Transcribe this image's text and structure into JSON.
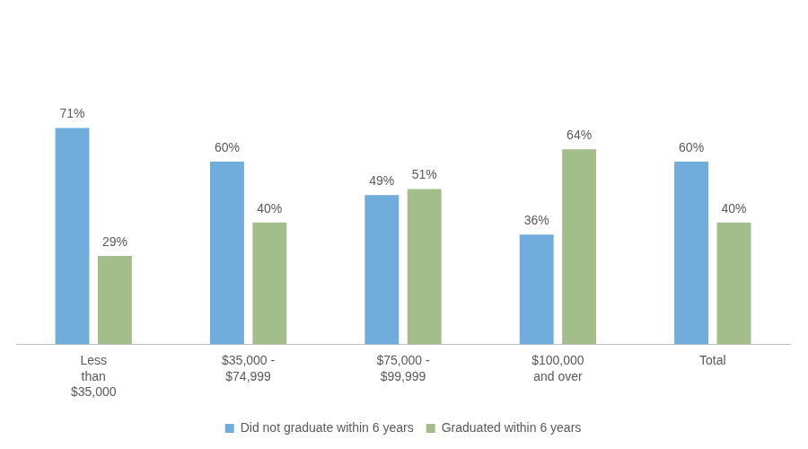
{
  "chart_data": {
    "type": "bar",
    "categories": [
      [
        "Less",
        "than",
        "$35,000"
      ],
      [
        "$35,000 -",
        "$74,999"
      ],
      [
        "$75,000 -",
        "$99,999"
      ],
      [
        "$100,000",
        "and over"
      ],
      [
        "Total"
      ]
    ],
    "series": [
      {
        "name": "Did not graduate within 6 years",
        "color": "#70ADDD",
        "values": [
          71,
          60,
          49,
          36,
          60
        ],
        "value_labels": [
          "71%",
          "60%",
          "49%",
          "36%",
          "60%"
        ]
      },
      {
        "name": "Graduated within 6 years",
        "color": "#A3BD8B",
        "values": [
          29,
          40,
          51,
          64,
          40
        ],
        "value_labels": [
          "29%",
          "40%",
          "51%",
          "64%",
          "40%"
        ]
      }
    ],
    "ylim": [
      0,
      80
    ],
    "grid": false,
    "legend": "bottom",
    "data_labels": true,
    "tick_labels": "x"
  }
}
